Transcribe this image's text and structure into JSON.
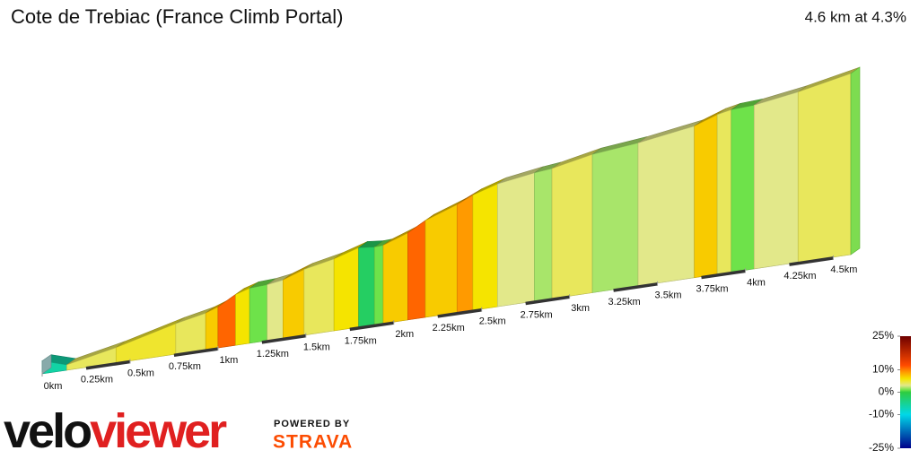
{
  "chart_data": {
    "type": "elevation-profile",
    "title": "Cote de Trebiac (France Climb Portal)",
    "subtitle": "4.6 km at 4.3%",
    "distances": [
      0,
      0.14,
      0.42,
      0.76,
      0.93,
      1.0,
      1.1,
      1.18,
      1.28,
      1.37,
      1.49,
      1.66,
      1.8,
      1.89,
      1.94,
      2.08,
      2.18,
      2.36,
      2.45,
      2.59,
      2.8,
      2.9,
      3.13,
      3.39,
      3.71,
      3.84,
      3.92,
      4.05,
      4.3,
      4.6
    ],
    "gradients": [
      -6,
      4,
      5,
      4,
      7,
      11,
      6,
      1,
      3,
      7,
      4,
      6,
      -2,
      1,
      7,
      11,
      7,
      9,
      6,
      3,
      2,
      4,
      2,
      3,
      7,
      4,
      1,
      3,
      4
    ],
    "xlim": [
      0,
      4.6
    ],
    "xticks": [
      {
        "value": 0,
        "label": "0km"
      },
      {
        "value": 0.25,
        "label": "0.25km"
      },
      {
        "value": 0.5,
        "label": "0.5km"
      },
      {
        "value": 0.75,
        "label": "0.75km"
      },
      {
        "value": 1,
        "label": "1km"
      },
      {
        "value": 1.25,
        "label": "1.25km"
      },
      {
        "value": 1.5,
        "label": "1.5km"
      },
      {
        "value": 1.75,
        "label": "1.75km"
      },
      {
        "value": 2,
        "label": "2km"
      },
      {
        "value": 2.25,
        "label": "2.25km"
      },
      {
        "value": 2.5,
        "label": "2.5km"
      },
      {
        "value": 2.75,
        "label": "2.75km"
      },
      {
        "value": 3,
        "label": "3km"
      },
      {
        "value": 3.25,
        "label": "3.25km"
      },
      {
        "value": 3.5,
        "label": "3.5km"
      },
      {
        "value": 3.75,
        "label": "3.75km"
      },
      {
        "value": 4,
        "label": "4km"
      },
      {
        "value": 4.25,
        "label": "4.25km"
      },
      {
        "value": 4.5,
        "label": "4.5km"
      }
    ],
    "color_scale": {
      "ticks": [
        {
          "value": 25,
          "label": "25%"
        },
        {
          "value": 10,
          "label": "10%"
        },
        {
          "value": 0,
          "label": "0%"
        },
        {
          "value": -10,
          "label": "-10%"
        },
        {
          "value": -25,
          "label": "-25%"
        }
      ],
      "stops": [
        {
          "value": 25,
          "color": "#6e0000"
        },
        {
          "value": 12,
          "color": "#ff4a00"
        },
        {
          "value": 9,
          "color": "#ff9a00"
        },
        {
          "value": 6,
          "color": "#f5e400"
        },
        {
          "value": 3,
          "color": "#e2e88a"
        },
        {
          "value": 1,
          "color": "#6ee24a"
        },
        {
          "value": 0,
          "color": "#2ecc40"
        },
        {
          "value": -10,
          "color": "#00d8e8"
        },
        {
          "value": -25,
          "color": "#00008b"
        }
      ]
    }
  },
  "branding": {
    "logo": [
      "velo",
      "viewer"
    ],
    "powered_by": "POWERED BY",
    "strava": "STRAVA"
  }
}
